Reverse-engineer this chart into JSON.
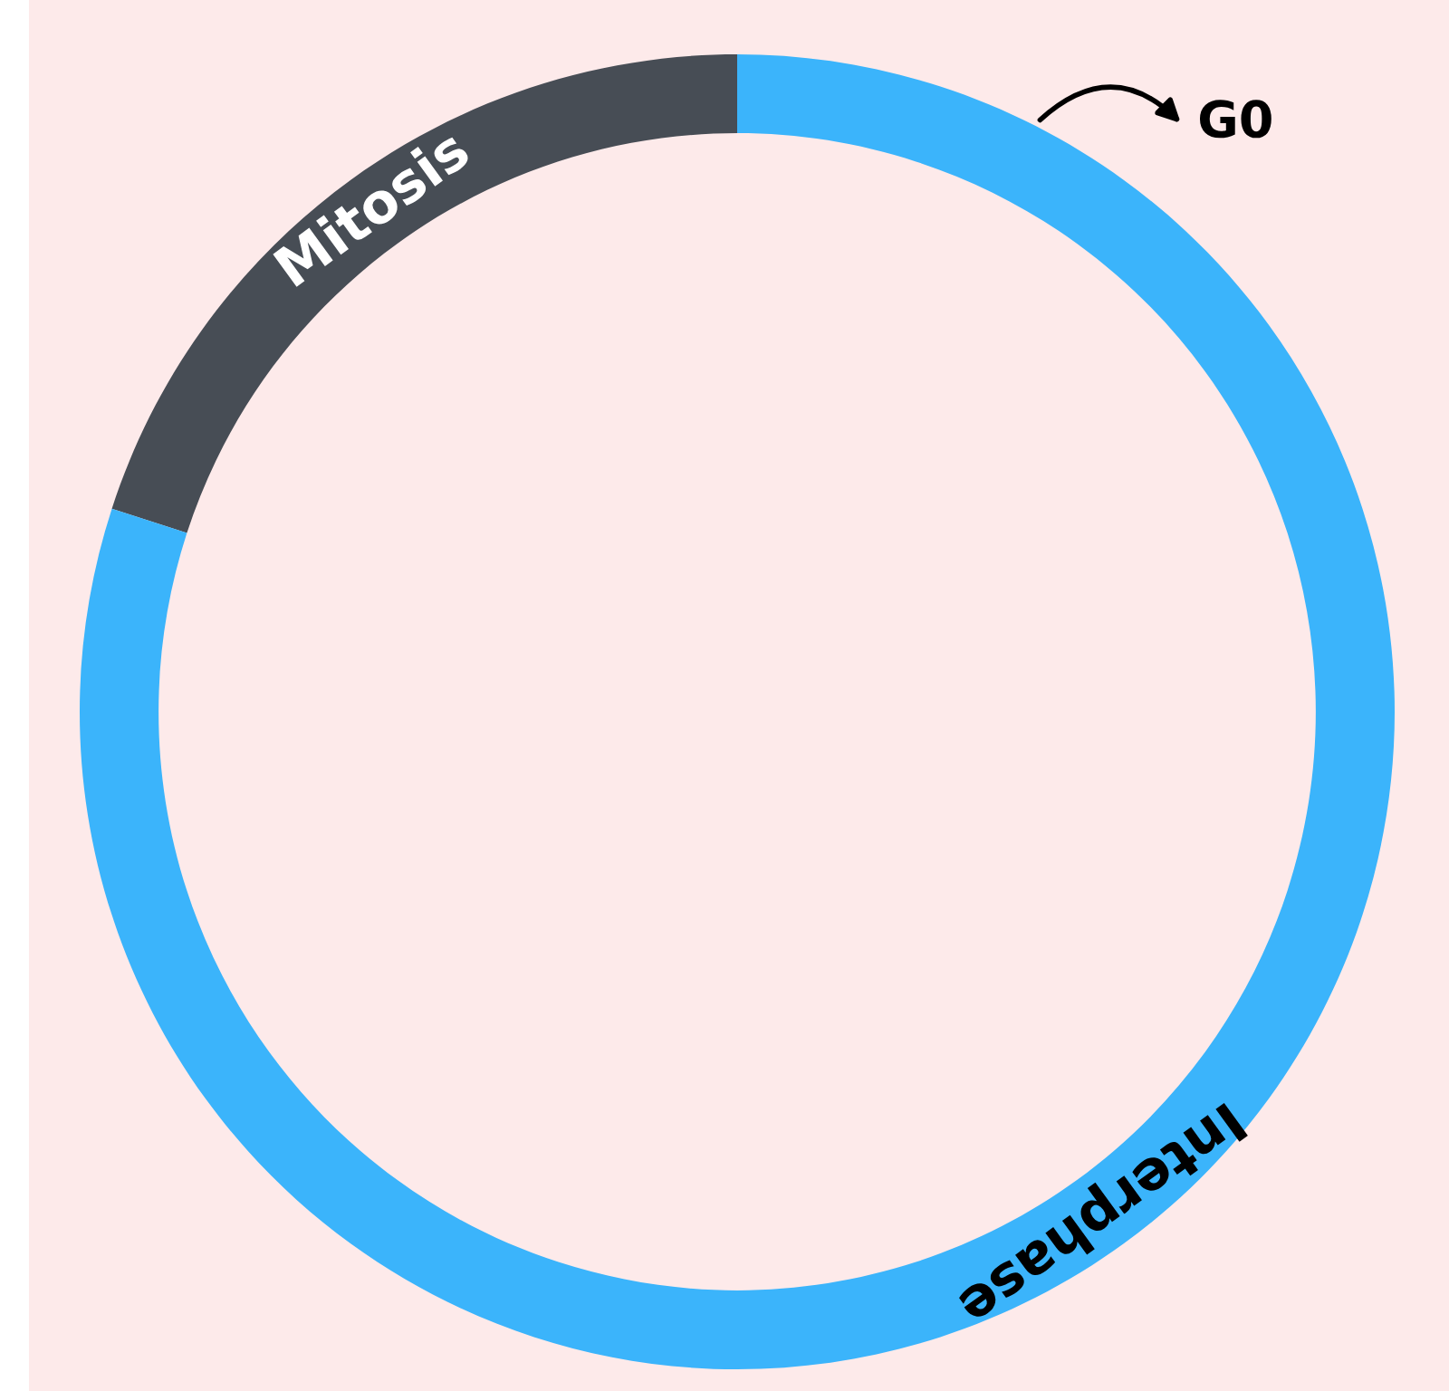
{
  "chart_data": {
    "type": "donut",
    "categories": [
      "Mitosis",
      "Interphase"
    ],
    "values": [
      20,
      80
    ],
    "colors": [
      "#474d55",
      "#3bb4fb"
    ],
    "annotations": [
      "G0"
    ]
  }
}
